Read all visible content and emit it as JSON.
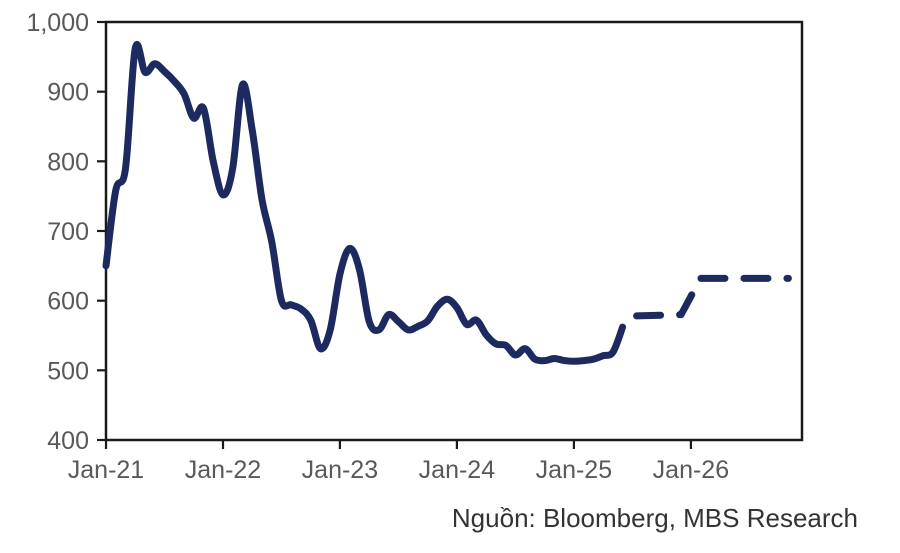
{
  "chart_data": {
    "type": "line",
    "title": "",
    "xlabel": "",
    "ylabel": "",
    "ylim": [
      400,
      1000
    ],
    "xlim_months": [
      0,
      71.4
    ],
    "grid": false,
    "legend": "none",
    "y_ticks": [
      1000,
      900,
      800,
      700,
      600,
      500,
      400
    ],
    "y_tick_labels": [
      "1,000",
      "900",
      "800",
      "700",
      "600",
      "500",
      "400"
    ],
    "x_ticks": {
      "months": [
        0,
        12,
        24,
        36,
        48,
        60
      ],
      "labels": [
        "Jan-21",
        "Jan-22",
        "Jan-23",
        "Jan-24",
        "Jan-25",
        "Jan-26"
      ]
    },
    "line_color": "#1C2A5F",
    "axis_color": "#1A1A1A",
    "tick_label_color": "#595959",
    "series": [
      {
        "name": "historical",
        "style": "solid",
        "start_month": 0,
        "values": [
          650,
          758,
          790,
          962,
          928,
          940,
          929,
          915,
          897,
          862,
          876,
          800,
          752,
          790,
          910,
          845,
          745,
          685,
          600,
          594,
          588,
          572,
          531,
          558,
          638,
          675,
          645,
          570,
          558,
          580,
          570,
          558,
          563,
          571,
          592,
          602,
          590,
          566,
          572,
          551,
          538,
          536,
          522,
          531,
          516,
          514,
          517,
          514,
          513,
          514,
          516,
          521,
          526,
          562
        ]
      },
      {
        "name": "forecast",
        "style": "dashed",
        "months": [
          53,
          54,
          59,
          61,
          70
        ],
        "values": [
          562,
          578,
          580,
          632,
          632
        ]
      }
    ]
  },
  "footer": {
    "source_label": "Nguồn: Bloomberg, MBS Research"
  }
}
